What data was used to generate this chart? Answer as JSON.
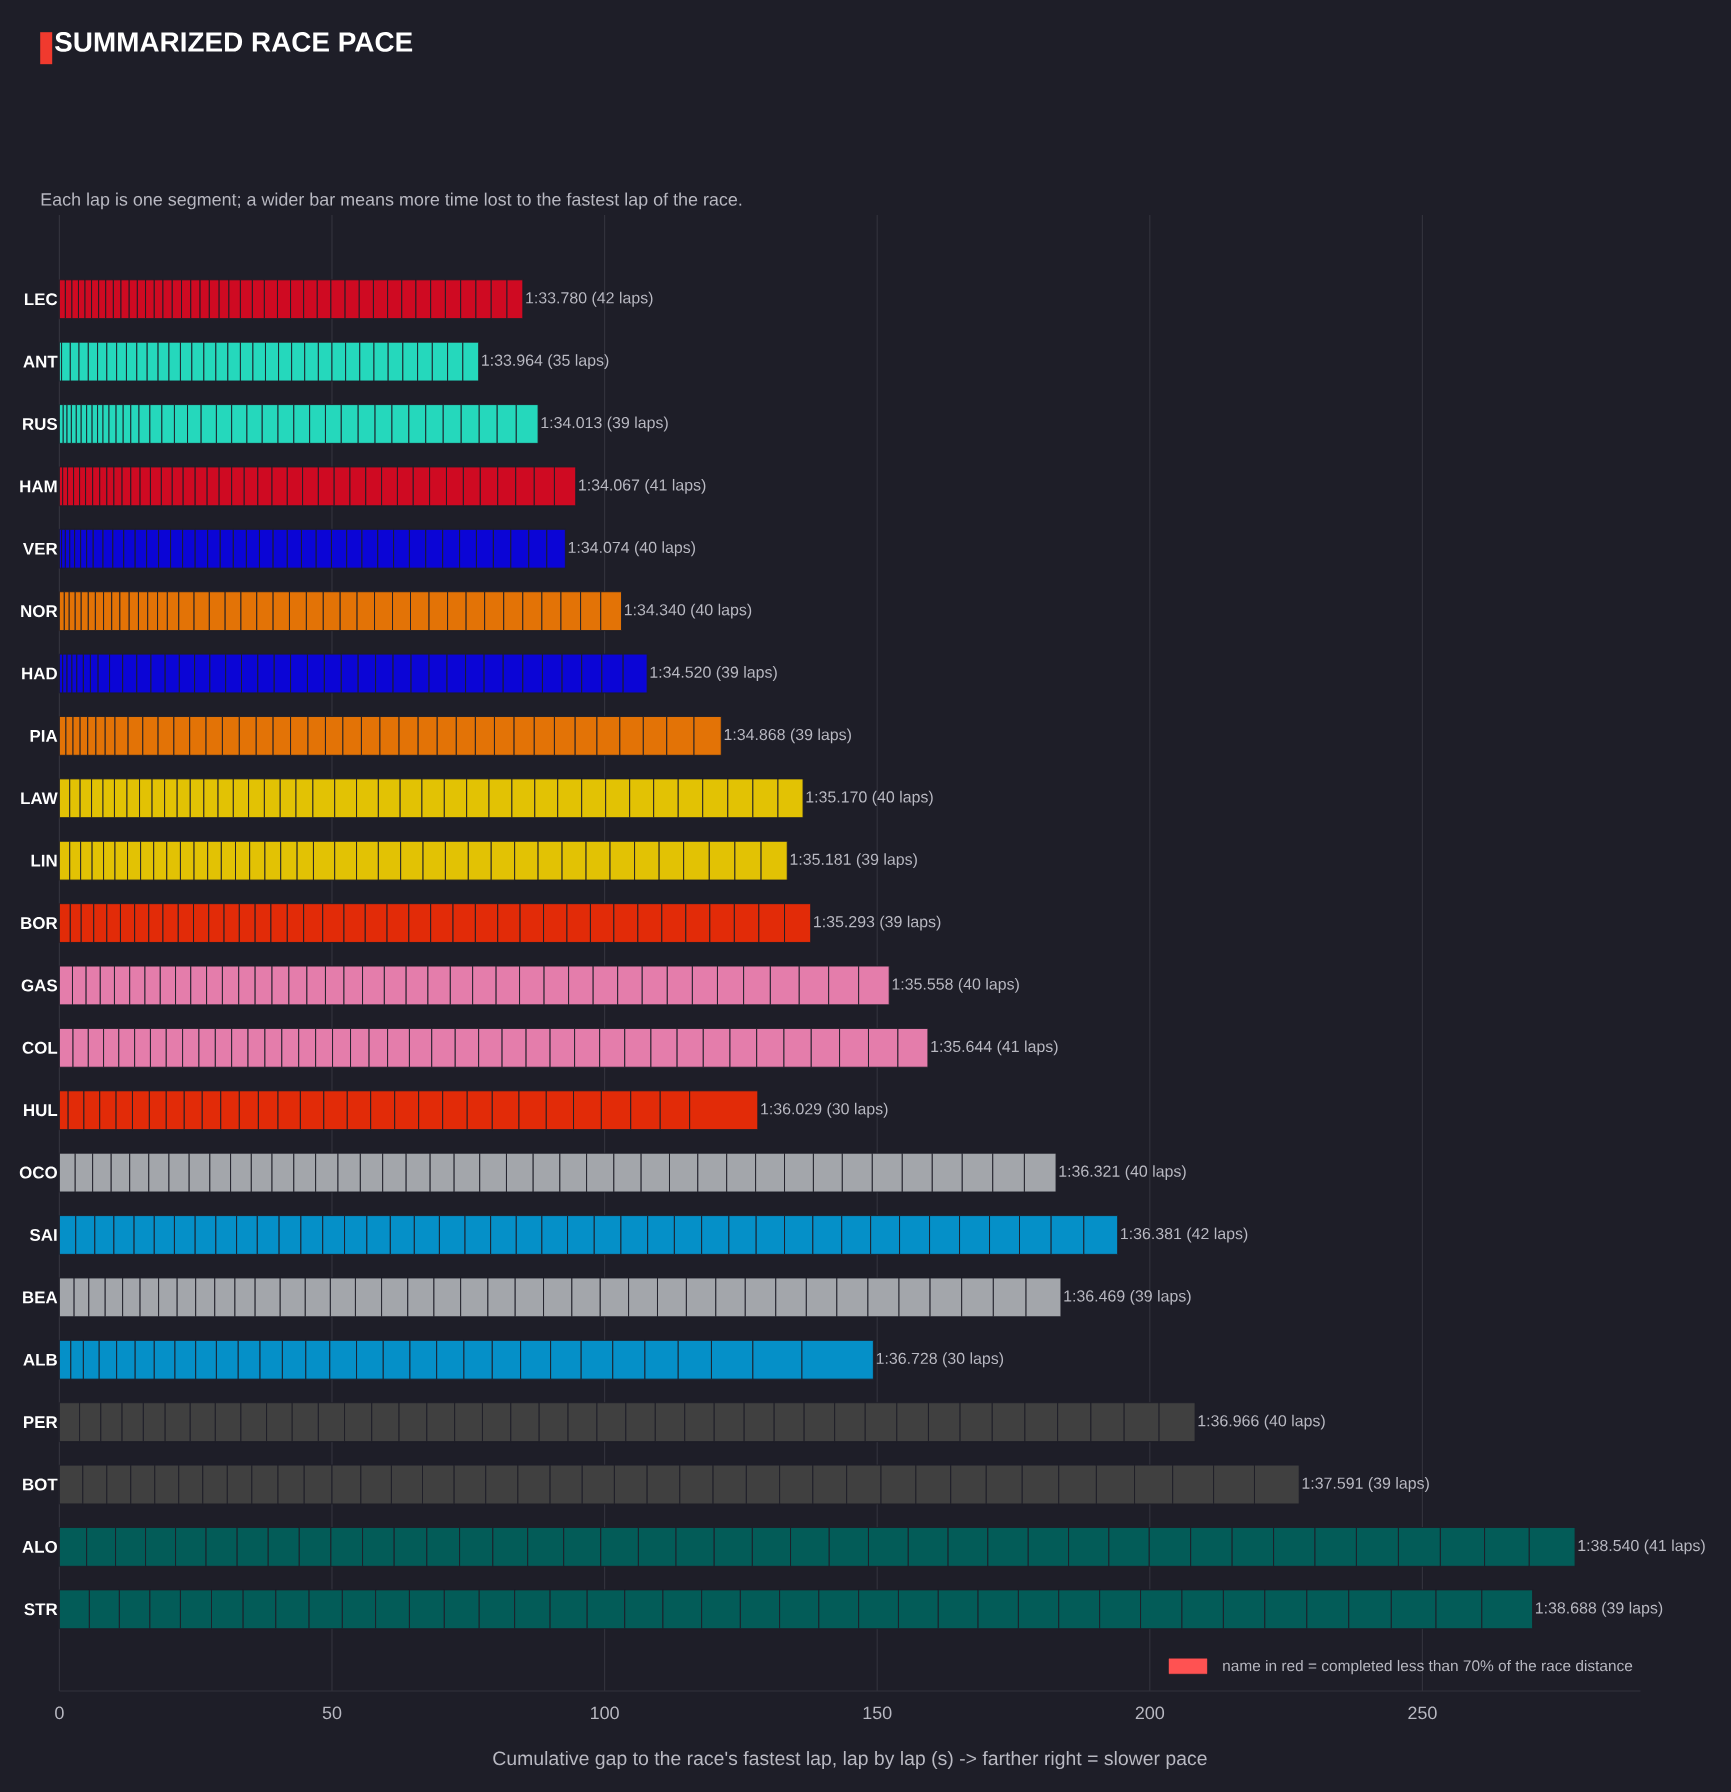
{
  "chart_data": {
    "type": "bar",
    "orientation": "horizontal",
    "stacked": true,
    "title": "SUMMARIZED RACE PACE",
    "subtitle": "Each lap is one segment; a wider bar means more time lost to the fastest lap of the race.",
    "xlabel": "Cumulative gap to the race's fastest lap, lap by lap (s) -> farther right = slower pace",
    "categories": [
      "LEC",
      "ANT",
      "RUS",
      "HAM",
      "VER",
      "NOR",
      "HAD",
      "PIA",
      "LAW",
      "LIN",
      "BOR",
      "GAS",
      "COL",
      "HUL",
      "OCO",
      "SAI",
      "BEA",
      "ALB",
      "PER",
      "BOT",
      "ALO",
      "STR"
    ],
    "series": [
      {
        "values": [
          1.1,
          0.4,
          0.7,
          0.6,
          0.4,
          0.9,
          0.6,
          1.2,
          1.9,
          1.9,
          2.0,
          2.4,
          2.5,
          1.6,
          2.9,
          3.0,
          2.7,
          2.1,
          3.7,
          4.3,
          5.0,
          5.5
        ],
        "colors": [
          "#cf0a22",
          "#25d8bc",
          "#25d8bc",
          "#cf0a22",
          "#0b05d6",
          "#e37306",
          "#0b05d6",
          "#e37306",
          "#e2c204",
          "#e2c204",
          "#e22b08",
          "#e47dab",
          "#e47dab",
          "#e22b08",
          "#a3a6ab",
          "#0590c8",
          "#a3a6ab",
          "#0590c8",
          "#404040",
          "#404040",
          "#035c58",
          "#035c58"
        ]
      },
      {
        "values": [
          1.2,
          1.6,
          0.7,
          0.9,
          0.7,
          0.9,
          0.8,
          1.3,
          1.9,
          2.0,
          2.0,
          2.5,
          2.8,
          2.9,
          3.2,
          3.5,
          2.7,
          2.3,
          3.9,
          4.4,
          5.3,
          5.5
        ],
        "colors": [
          "#cf0a22",
          "#25d8bc",
          "#25d8bc",
          "#cf0a22",
          "#0b05d6",
          "#e37306",
          "#0b05d6",
          "#e37306",
          "#e2c204",
          "#e2c204",
          "#e22b08",
          "#e47dab",
          "#e47dab",
          "#e22b08",
          "#a3a6ab",
          "#0590c8",
          "#a3a6ab",
          "#0590c8",
          "#404040",
          "#404040",
          "#035c58",
          "#035c58"
        ]
      },
      {
        "values": [
          1.2,
          1.6,
          0.8,
          1.1,
          0.8,
          1.1,
          0.9,
          1.3,
          2.1,
          2.1,
          2.3,
          2.6,
          2.8,
          2.9,
          3.4,
          3.5,
          3.0,
          2.9,
          3.9,
          4.4,
          5.5,
          5.6
        ],
        "colors": [
          "#cf0a22",
          "#25d8bc",
          "#25d8bc",
          "#cf0a22",
          "#0b05d6",
          "#e37306",
          "#0b05d6",
          "#e37306",
          "#e2c204",
          "#e2c204",
          "#e22b08",
          "#e47dab",
          "#e47dab",
          "#e22b08",
          "#a3a6ab",
          "#0590c8",
          "#a3a6ab",
          "#0590c8",
          "#404040",
          "#404040",
          "#035c58",
          "#035c58"
        ]
      },
      {
        "values": [
          1.2,
          1.7,
          0.9,
          1.1,
          0.9,
          1.1,
          0.9,
          1.4,
          2.1,
          2.1,
          2.4,
          2.6,
          2.8,
          3.0,
          3.4,
          3.7,
          3.2,
          3.2,
          3.9,
          4.4,
          5.5,
          5.6
        ],
        "colors": [
          "#cf0a22",
          "#25d8bc",
          "#25d8bc",
          "#cf0a22",
          "#0b05d6",
          "#e37306",
          "#0b05d6",
          "#e37306",
          "#e2c204",
          "#e2c204",
          "#e22b08",
          "#e47dab",
          "#e47dab",
          "#e22b08",
          "#a3a6ab",
          "#0590c8",
          "#a3a6ab",
          "#0590c8",
          "#404040",
          "#404040",
          "#035c58",
          "#035c58"
        ]
      },
      {
        "values": [
          1.2,
          1.7,
          0.9,
          1.1,
          1.1,
          1.3,
          1.2,
          1.5,
          2.1,
          2.1,
          2.5,
          2.8,
          2.9,
          3.0,
          3.5,
          3.7,
          3.2,
          3.4,
          4.0,
          4.4,
          5.6,
          5.7
        ],
        "colors": [
          "#cf0a22",
          "#25d8bc",
          "#25d8bc",
          "#cf0a22",
          "#0b05d6",
          "#e37306",
          "#0b05d6",
          "#e37306",
          "#e2c204",
          "#e2c204",
          "#e22b08",
          "#e47dab",
          "#e47dab",
          "#e22b08",
          "#a3a6ab",
          "#0590c8",
          "#a3a6ab",
          "#0590c8",
          "#404040",
          "#404040",
          "#035c58",
          "#035c58"
        ]
      },
      {
        "values": [
          1.3,
          1.7,
          1.0,
          1.3,
          1.1,
          1.3,
          1.3,
          1.7,
          2.3,
          2.3,
          2.6,
          2.8,
          2.9,
          3.1,
          3.7,
          3.7,
          3.4,
          3.5,
          4.6,
          4.4,
          5.7,
          5.8
        ],
        "colors": [
          "#cf0a22",
          "#25d8bc",
          "#25d8bc",
          "#cf0a22",
          "#0b05d6",
          "#e37306",
          "#0b05d6",
          "#e37306",
          "#e2c204",
          "#e2c204",
          "#e22b08",
          "#e47dab",
          "#e47dab",
          "#e22b08",
          "#a3a6ab",
          "#0590c8",
          "#a3a6ab",
          "#0590c8",
          "#404040",
          "#404040",
          "#035c58",
          "#035c58"
        ]
      },
      {
        "values": [
          1.3,
          1.8,
          1.0,
          1.3,
          1.2,
          1.5,
          1.4,
          1.8,
          2.3,
          2.4,
          2.6,
          2.8,
          2.9,
          3.1,
          3.7,
          3.8,
          3.4,
          3.8,
          4.6,
          4.5,
          5.7,
          6.0
        ],
        "colors": [
          "#cf0a22",
          "#25d8bc",
          "#25d8bc",
          "#cf0a22",
          "#0b05d6",
          "#e37306",
          "#0b05d6",
          "#e37306",
          "#e2c204",
          "#e2c204",
          "#e22b08",
          "#e47dab",
          "#e47dab",
          "#e22b08",
          "#a3a6ab",
          "#0590c8",
          "#a3a6ab",
          "#0590c8",
          "#404040",
          "#404040",
          "#035c58",
          "#035c58"
        ]
      },
      {
        "values": [
          1.4,
          1.8,
          1.0,
          1.3,
          1.8,
          1.5,
          2.1,
          2.4,
          2.3,
          2.4,
          2.6,
          2.8,
          3.0,
          3.3,
          3.8,
          3.8,
          3.4,
          3.8,
          4.7,
          4.5,
          5.7,
          6.1
        ],
        "colors": [
          "#cf0a22",
          "#25d8bc",
          "#25d8bc",
          "#cf0a22",
          "#0b05d6",
          "#e37306",
          "#0b05d6",
          "#e37306",
          "#e2c204",
          "#e2c204",
          "#e22b08",
          "#e47dab",
          "#e47dab",
          "#e22b08",
          "#a3a6ab",
          "#0590c8",
          "#a3a6ab",
          "#0590c8",
          "#404040",
          "#404040",
          "#035c58",
          "#035c58"
        ]
      },
      {
        "values": [
          1.4,
          1.9,
          1.0,
          1.3,
          1.8,
          1.5,
          2.4,
          2.7,
          2.3,
          2.4,
          2.8,
          2.8,
          3.0,
          3.3,
          3.8,
          3.8,
          3.5,
          3.8,
          4.7,
          4.8,
          5.8,
          6.1
        ],
        "colors": [
          "#cf0a22",
          "#25d8bc",
          "#25d8bc",
          "#cf0a22",
          "#0b05d6",
          "#e37306",
          "#0b05d6",
          "#e37306",
          "#e2c204",
          "#e2c204",
          "#e22b08",
          "#e47dab",
          "#e47dab",
          "#e22b08",
          "#a3a6ab",
          "#0590c8",
          "#a3a6ab",
          "#0590c8",
          "#404040",
          "#404040",
          "#035c58",
          "#035c58"
        ]
      },
      {
        "values": [
          1.5,
          1.9,
          1.1,
          1.5,
          2.0,
          1.7,
          2.6,
          2.8,
          2.3,
          2.5,
          2.8,
          2.9,
          3.0,
          3.4,
          3.8,
          3.8,
          3.7,
          4.0,
          4.7,
          4.8,
          5.8,
          6.1
        ],
        "colors": [
          "#cf0a22",
          "#25d8bc",
          "#25d8bc",
          "#cf0a22",
          "#0b05d6",
          "#e37306",
          "#0b05d6",
          "#e37306",
          "#e2c204",
          "#e2c204",
          "#e22b08",
          "#e47dab",
          "#e47dab",
          "#e22b08",
          "#a3a6ab",
          "#0590c8",
          "#a3a6ab",
          "#0590c8",
          "#404040",
          "#404040",
          "#035c58",
          "#035c58"
        ]
      },
      {
        "values": [
          1.5,
          2.0,
          1.3,
          1.6,
          2.1,
          1.7,
          2.6,
          2.9,
          2.4,
          2.5,
          2.8,
          2.9,
          3.0,
          3.4,
          3.8,
          4.0,
          3.7,
          4.0,
          4.8,
          5.1,
          5.8,
          6.2
        ],
        "colors": [
          "#cf0a22",
          "#25d8bc",
          "#25d8bc",
          "#cf0a22",
          "#0b05d6",
          "#e37306",
          "#0b05d6",
          "#e37306",
          "#e2c204",
          "#e2c204",
          "#e22b08",
          "#e47dab",
          "#e47dab",
          "#e22b08",
          "#a3a6ab",
          "#0590c8",
          "#a3a6ab",
          "#0590c8",
          "#404040",
          "#404040",
          "#035c58",
          "#035c58"
        ]
      },
      {
        "values": [
          1.5,
          2.0,
          1.3,
          1.7,
          2.1,
          1.7,
          2.6,
          2.9,
          2.5,
          2.5,
          2.8,
          3.0,
          3.0,
          3.5,
          4.0,
          4.0,
          4.6,
          4.1,
          4.8,
          5.3,
          6.0,
          6.4
        ],
        "colors": [
          "#cf0a22",
          "#25d8bc",
          "#25d8bc",
          "#cf0a22",
          "#0b05d6",
          "#e37306",
          "#0b05d6",
          "#e37306",
          "#e2c204",
          "#e2c204",
          "#e22b08",
          "#e47dab",
          "#e47dab",
          "#e22b08",
          "#a3a6ab",
          "#0590c8",
          "#a3a6ab",
          "#0590c8",
          "#404040",
          "#404040",
          "#035c58",
          "#035c58"
        ]
      },
      {
        "values": [
          1.6,
          2.1,
          1.4,
          1.9,
          2.2,
          1.8,
          2.6,
          3.0,
          2.6,
          2.5,
          2.8,
          3.0,
          3.1,
          3.6,
          4.0,
          4.0,
          4.6,
          4.3,
          5.0,
          5.6,
          6.0,
          6.4
        ],
        "colors": [
          "#cf0a22",
          "#25d8bc",
          "#25d8bc",
          "#cf0a22",
          "#0b05d6",
          "#e37306",
          "#0b05d6",
          "#e37306",
          "#e2c204",
          "#e2c204",
          "#e22b08",
          "#e47dab",
          "#e47dab",
          "#e22b08",
          "#a3a6ab",
          "#0590c8",
          "#a3a6ab",
          "#0590c8",
          "#404040",
          "#404040",
          "#035c58",
          "#035c58"
        ]
      },
      {
        "values": [
          1.6,
          2.1,
          1.5,
          2.0,
          2.2,
          1.8,
          2.8,
          3.0,
          2.8,
          2.6,
          2.9,
          3.1,
          3.1,
          4.1,
          4.1,
          4.0,
          4.6,
          4.4,
          5.0,
          5.7,
          6.1,
          6.5
        ],
        "colors": [
          "#cf0a22",
          "#25d8bc",
          "#25d8bc",
          "#cf0a22",
          "#0b05d6",
          "#e37306",
          "#0b05d6",
          "#e37306",
          "#e2c204",
          "#e2c204",
          "#e22b08",
          "#e47dab",
          "#e47dab",
          "#e22b08",
          "#a3a6ab",
          "#0590c8",
          "#a3a6ab",
          "#0590c8",
          "#404040",
          "#404040",
          "#035c58",
          "#035c58"
        ]
      },
      {
        "values": [
          1.7,
          2.2,
          2.0,
          2.0,
          2.2,
          2.1,
          2.8,
          3.1,
          2.8,
          2.6,
          2.9,
          3.1,
          3.1,
          4.3,
          4.1,
          4.1,
          4.6,
          4.9,
          5.1,
          5.8,
          6.4,
          6.5
        ],
        "colors": [
          "#cf0a22",
          "#25d8bc",
          "#25d8bc",
          "#cf0a22",
          "#0b05d6",
          "#e37306",
          "#0b05d6",
          "#e37306",
          "#e2c204",
          "#e2c204",
          "#e22b08",
          "#e47dab",
          "#e47dab",
          "#e22b08",
          "#a3a6ab",
          "#0590c8",
          "#a3a6ab",
          "#0590c8",
          "#404040",
          "#404040",
          "#035c58",
          "#035c58"
        ]
      },
      {
        "values": [
          1.7,
          2.2,
          2.2,
          2.0,
          2.3,
          2.8,
          2.9,
          3.1,
          2.9,
          2.8,
          3.0,
          3.3,
          3.1,
          4.3,
          4.1,
          4.3,
          4.8,
          4.9,
          5.1,
          5.8,
          6.6,
          6.8
        ],
        "colors": [
          "#cf0a22",
          "#25d8bc",
          "#25d8bc",
          "#cf0a22",
          "#0b05d6",
          "#e37306",
          "#0b05d6",
          "#e37306",
          "#e2c204",
          "#e2c204",
          "#e22b08",
          "#e47dab",
          "#e47dab",
          "#e22b08",
          "#a3a6ab",
          "#0590c8",
          "#a3a6ab",
          "#0590c8",
          "#404040",
          "#404040",
          "#035c58",
          "#035c58"
        ]
      },
      {
        "values": [
          1.7,
          2.2,
          2.3,
          2.2,
          2.3,
          2.8,
          2.9,
          3.1,
          2.9,
          2.9,
          3.0,
          3.4,
          3.1,
          4.3,
          4.3,
          4.4,
          4.8,
          4.9,
          5.1,
          5.9,
          6.8,
          6.9
        ],
        "colors": [
          "#cf0a22",
          "#25d8bc",
          "#25d8bc",
          "#cf0a22",
          "#0b05d6",
          "#e37306",
          "#0b05d6",
          "#e37306",
          "#e2c204",
          "#e2c204",
          "#e22b08",
          "#e47dab",
          "#e47dab",
          "#e22b08",
          "#a3a6ab",
          "#0590c8",
          "#a3a6ab",
          "#0590c8",
          "#404040",
          "#404040",
          "#035c58",
          "#035c58"
        ]
      },
      {
        "values": [
          1.7,
          2.3,
          2.4,
          2.2,
          2.3,
          2.9,
          3.0,
          3.2,
          2.9,
          3.0,
          3.5,
          3.4,
          3.3,
          4.4,
          4.4,
          4.6,
          4.8,
          4.9,
          5.2,
          5.9,
          6.9,
          7.0
        ],
        "colors": [
          "#cf0a22",
          "#25d8bc",
          "#25d8bc",
          "#cf0a22",
          "#0b05d6",
          "#e37306",
          "#0b05d6",
          "#e37306",
          "#e2c204",
          "#e2c204",
          "#e22b08",
          "#e47dab",
          "#e47dab",
          "#e22b08",
          "#a3a6ab",
          "#0590c8",
          "#a3a6ab",
          "#0590c8",
          "#404040",
          "#404040",
          "#035c58",
          "#035c58"
        ]
      },
      {
        "values": [
          1.7,
          2.3,
          2.5,
          2.2,
          2.4,
          2.9,
          3.0,
          3.2,
          3.1,
          3.0,
          3.9,
          3.4,
          3.4,
          4.4,
          4.4,
          4.7,
          4.9,
          5.0,
          5.2,
          5.9,
          6.9,
          7.1
        ],
        "colors": [
          "#cf0a22",
          "#25d8bc",
          "#25d8bc",
          "#cf0a22",
          "#0b05d6",
          "#e37306",
          "#0b05d6",
          "#e37306",
          "#e2c204",
          "#e2c204",
          "#e22b08",
          "#e47dab",
          "#e47dab",
          "#e22b08",
          "#a3a6ab",
          "#0590c8",
          "#a3a6ab",
          "#0590c8",
          "#404040",
          "#404040",
          "#035c58",
          "#035c58"
        ]
      },
      {
        "values": [
          1.8,
          2.3,
          2.8,
          2.3,
          2.4,
          2.9,
          3.0,
          3.2,
          4.0,
          3.9,
          3.9,
          4.0,
          3.4,
          4.4,
          4.7,
          4.7,
          5.0,
          5.2,
          5.3,
          5.9,
          7.0,
          7.1
        ],
        "colors": [
          "#cf0a22",
          "#25d8bc",
          "#25d8bc",
          "#cf0a22",
          "#0b05d6",
          "#e37306",
          "#0b05d6",
          "#e37306",
          "#e2c204",
          "#e2c204",
          "#e22b08",
          "#e47dab",
          "#e47dab",
          "#e22b08",
          "#a3a6ab",
          "#0590c8",
          "#a3a6ab",
          "#0590c8",
          "#404040",
          "#404040",
          "#035c58",
          "#035c58"
        ]
      },
      {
        "values": [
          1.8,
          2.4,
          2.8,
          2.3,
          2.4,
          3.0,
          3.1,
          3.2,
          4.0,
          4.0,
          4.0,
          4.0,
          4.0,
          4.5,
          4.9,
          4.7,
          5.0,
          5.2,
          5.3,
          6.0,
          7.0,
          7.2
        ],
        "colors": [
          "#cf0a22",
          "#25d8bc",
          "#25d8bc",
          "#cf0a22",
          "#0b05d6",
          "#e37306",
          "#0b05d6",
          "#e37306",
          "#e2c204",
          "#e2c204",
          "#e22b08",
          "#e47dab",
          "#e47dab",
          "#e22b08",
          "#a3a6ab",
          "#0590c8",
          "#a3a6ab",
          "#0590c8",
          "#404040",
          "#404040",
          "#035c58",
          "#035c58"
        ]
      },
      {
        "values": [
          2.1,
          2.4,
          2.8,
          2.5,
          2.5,
          3.0,
          3.1,
          3.4,
          4.0,
          4.0,
          4.0,
          4.0,
          4.1,
          4.6,
          4.9,
          4.7,
          5.2,
          5.5,
          5.3,
          6.0,
          7.0,
          7.2
        ],
        "colors": [
          "#cf0a22",
          "#25d8bc",
          "#25d8bc",
          "#cf0a22",
          "#0b05d6",
          "#e37306",
          "#0b05d6",
          "#e37306",
          "#e2c204",
          "#e2c204",
          "#e22b08",
          "#e47dab",
          "#e47dab",
          "#e22b08",
          "#a3a6ab",
          "#0590c8",
          "#a3a6ab",
          "#0590c8",
          "#404040",
          "#404040",
          "#035c58",
          "#035c58"
        ]
      },
      {
        "values": [
          2.2,
          2.4,
          2.8,
          2.6,
          2.6,
          3.1,
          3.1,
          3.4,
          4.0,
          4.1,
          4.0,
          4.1,
          4.3,
          4.9,
          4.9,
          4.7,
          5.2,
          5.6,
          5.4,
          6.1,
          7.1,
          7.3
        ],
        "colors": [
          "#cf0a22",
          "#25d8bc",
          "#25d8bc",
          "#cf0a22",
          "#0b05d6",
          "#e37306",
          "#0b05d6",
          "#e37306",
          "#e2c204",
          "#e2c204",
          "#e22b08",
          "#e47dab",
          "#e47dab",
          "#e22b08",
          "#a3a6ab",
          "#0590c8",
          "#a3a6ab",
          "#0590c8",
          "#404040",
          "#404040",
          "#035c58",
          "#035c58"
        ]
      },
      {
        "values": [
          2.2,
          2.5,
          2.9,
          2.8,
          2.6,
          3.1,
          3.1,
          3.5,
          4.0,
          4.1,
          4.1,
          4.1,
          4.3,
          5.0,
          4.9,
          4.9,
          5.2,
          5.8,
          5.4,
          6.1,
          7.2,
          7.3
        ],
        "colors": [
          "#cf0a22",
          "#25d8bc",
          "#25d8bc",
          "#cf0a22",
          "#0b05d6",
          "#e37306",
          "#0b05d6",
          "#e37306",
          "#e2c204",
          "#e2c204",
          "#e22b08",
          "#e47dab",
          "#e47dab",
          "#e22b08",
          "#a3a6ab",
          "#0590c8",
          "#a3a6ab",
          "#0590c8",
          "#404040",
          "#404040",
          "#035c58",
          "#035c58"
        ]
      },
      {
        "values": [
          2.4,
          2.5,
          2.9,
          2.8,
          2.7,
          3.1,
          3.2,
          3.5,
          4.1,
          4.1,
          4.1,
          4.3,
          4.3,
          5.0,
          5.0,
          4.9,
          5.2,
          5.9,
          5.4,
          6.1,
          7.3,
          7.3
        ],
        "colors": [
          "#cf0a22",
          "#25d8bc",
          "#25d8bc",
          "#cf0a22",
          "#0b05d6",
          "#e37306",
          "#0b05d6",
          "#e37306",
          "#e2c204",
          "#e2c204",
          "#e22b08",
          "#e47dab",
          "#e47dab",
          "#e22b08",
          "#a3a6ab",
          "#0590c8",
          "#a3a6ab",
          "#0590c8",
          "#404040",
          "#404040",
          "#035c58",
          "#035c58"
        ]
      },
      {
        "values": [
          2.4,
          2.5,
          2.9,
          2.9,
          2.8,
          3.1,
          3.2,
          3.5,
          4.1,
          4.2,
          4.1,
          4.3,
          4.4,
          5.1,
          5.0,
          4.9,
          5.3,
          6.1,
          5.5,
          6.1,
          7.3,
          7.3
        ],
        "colors": [
          "#cf0a22",
          "#25d8bc",
          "#25d8bc",
          "#cf0a22",
          "#0b05d6",
          "#e37306",
          "#0b05d6",
          "#e37306",
          "#e2c204",
          "#e2c204",
          "#e22b08",
          "#e47dab",
          "#e47dab",
          "#e22b08",
          "#a3a6ab",
          "#0590c8",
          "#a3a6ab",
          "#0590c8",
          "#404040",
          "#404040",
          "#035c58",
          "#035c58"
        ]
      },
      {
        "values": [
          2.4,
          2.6,
          2.9,
          2.9,
          2.8,
          3.2,
          3.3,
          3.5,
          4.1,
          4.2,
          4.1,
          4.5,
          4.4,
          5.4,
          5.2,
          4.9,
          5.3,
          6.1,
          5.5,
          6.2,
          7.3,
          7.4
        ],
        "colors": [
          "#cf0a22",
          "#25d8bc",
          "#25d8bc",
          "#cf0a22",
          "#0b05d6",
          "#e37306",
          "#0b05d6",
          "#e37306",
          "#e2c204",
          "#e2c204",
          "#e22b08",
          "#e47dab",
          "#e47dab",
          "#e22b08",
          "#a3a6ab",
          "#0590c8",
          "#a3a6ab",
          "#0590c8",
          "#404040",
          "#404040",
          "#035c58",
          "#035c58"
        ]
      },
      {
        "values": [
          2.5,
          2.6,
          2.9,
          2.9,
          2.8,
          3.3,
          3.3,
          3.5,
          4.2,
          4.3,
          4.3,
          4.5,
          4.5,
          5.4,
          5.2,
          5.0,
          5.4,
          7.6,
          5.5,
          6.3,
          7.4,
          7.4
        ],
        "colors": [
          "#cf0a22",
          "#25d8bc",
          "#25d8bc",
          "#cf0a22",
          "#0b05d6",
          "#e37306",
          "#0b05d6",
          "#e37306",
          "#e2c204",
          "#e2c204",
          "#e22b08",
          "#e47dab",
          "#e47dab",
          "#e22b08",
          "#a3a6ab",
          "#0590c8",
          "#a3a6ab",
          "#0590c8",
          "#404040",
          "#404040",
          "#035c58",
          "#035c58"
        ]
      },
      {
        "values": [
          2.5,
          2.6,
          3.1,
          2.9,
          2.9,
          3.3,
          3.3,
          3.5,
          4.2,
          4.3,
          4.3,
          4.5,
          4.6,
          5.4,
          5.3,
          5.0,
          5.4,
          9.0,
          5.6,
          6.4,
          7.4,
          7.5
        ],
        "colors": [
          "#cf0a22",
          "#25d8bc",
          "#25d8bc",
          "#cf0a22",
          "#0b05d6",
          "#e37306",
          "#0b05d6",
          "#e37306",
          "#e2c204",
          "#e2c204",
          "#e22b08",
          "#e47dab",
          "#e47dab",
          "#e22b08",
          "#a3a6ab",
          "#0590c8",
          "#a3a6ab",
          "#0590c8",
          "#404040",
          "#404040",
          "#035c58",
          "#035c58"
        ]
      },
      {
        "values": [
          2.6,
          2.7,
          3.1,
          2.9,
          2.9,
          3.4,
          3.4,
          3.6,
          4.2,
          4.4,
          4.3,
          4.5,
          4.6,
          12.5,
          5.3,
          5.0,
          5.6,
          13.1,
          5.6,
          6.4,
          7.4,
          7.5
        ],
        "colors": [
          "#cf0a22",
          "#25d8bc",
          "#25d8bc",
          "#cf0a22",
          "#0b05d6",
          "#e37306",
          "#0b05d6",
          "#e37306",
          "#e2c204",
          "#e2c204",
          "#e22b08",
          "#e47dab",
          "#e47dab",
          "#e22b08",
          "#a3a6ab",
          "#0590c8",
          "#a3a6ab",
          "#0590c8",
          "#404040",
          "#404040",
          "#035c58",
          "#035c58"
        ]
      },
      {
        "values": [
          2.6,
          2.7,
          3.1,
          2.9,
          2.9,
          3.4,
          3.4,
          3.7,
          4.4,
          4.4,
          4.3,
          4.5,
          4.8,
          null,
          5.3,
          5.2,
          5.6,
          null,
          5.8,
          6.5,
          7.4,
          7.6
        ],
        "colors": [
          "#cf0a22",
          "#25d8bc",
          "#25d8bc",
          "#cf0a22",
          "#0b05d6",
          "#e37306",
          "#0b05d6",
          "#e37306",
          "#e2c204",
          "#e2c204",
          "#e22b08",
          "#e47dab",
          "#e47dab",
          null,
          "#a3a6ab",
          "#0590c8",
          "#a3a6ab",
          null,
          "#404040",
          "#404040",
          "#035c58",
          "#035c58"
        ]
      },
      {
        "values": [
          2.6,
          2.7,
          3.1,
          2.9,
          3.0,
          3.4,
          3.5,
          3.7,
          4.4,
          4.4,
          4.4,
          4.6,
          4.8,
          null,
          5.3,
          5.2,
          5.6,
          null,
          5.8,
          6.6,
          7.6,
          7.6
        ],
        "colors": [
          "#cf0a22",
          "#25d8bc",
          "#25d8bc",
          "#cf0a22",
          "#0b05d6",
          "#e37306",
          "#0b05d6",
          "#e37306",
          "#e2c204",
          "#e2c204",
          "#e22b08",
          "#e47dab",
          "#e47dab",
          null,
          "#a3a6ab",
          "#0590c8",
          "#a3a6ab",
          null,
          "#404040",
          "#404040",
          "#035c58",
          "#035c58"
        ]
      },
      {
        "values": [
          2.6,
          2.8,
          3.1,
          3.0,
          3.1,
          3.4,
          3.6,
          3.8,
          4.4,
          4.5,
          4.4,
          4.6,
          4.8,
          null,
          5.3,
          5.3,
          5.7,
          null,
          5.8,
          6.7,
          7.6,
          7.6
        ],
        "colors": [
          "#cf0a22",
          "#25d8bc",
          "#25d8bc",
          "#cf0a22",
          "#0b05d6",
          "#e37306",
          "#0b05d6",
          "#e37306",
          "#e2c204",
          "#e2c204",
          "#e22b08",
          "#e47dab",
          "#e47dab",
          null,
          "#a3a6ab",
          "#0590c8",
          "#a3a6ab",
          null,
          "#404040",
          "#404040",
          "#035c58",
          "#035c58"
        ]
      },
      {
        "values": [
          2.6,
          2.8,
          3.2,
          3.1,
          3.1,
          3.5,
          3.6,
          4.0,
          4.4,
          4.5,
          4.4,
          4.6,
          4.9,
          null,
          5.5,
          5.3,
          5.7,
          null,
          5.9,
          6.9,
          7.6,
          7.7
        ],
        "colors": [
          "#cf0a22",
          "#25d8bc",
          "#25d8bc",
          "#cf0a22",
          "#0b05d6",
          "#e37306",
          "#0b05d6",
          "#e37306",
          "#e2c204",
          "#e2c204",
          "#e22b08",
          "#e47dab",
          "#e47dab",
          null,
          "#a3a6ab",
          "#0590c8",
          "#a3a6ab",
          null,
          "#404040",
          "#404040",
          "#035c58",
          "#035c58"
        ]
      },
      {
        "values": [
          2.6,
          2.9,
          3.3,
          3.1,
          3.1,
          3.5,
          3.6,
          4.2,
          4.5,
          4.5,
          4.4,
          4.8,
          4.9,
          null,
          5.5,
          5.3,
          5.7,
          null,
          6.0,
          7.0,
          7.6,
          7.7
        ],
        "colors": [
          "#cf0a22",
          "#25d8bc",
          "#25d8bc",
          "#cf0a22",
          "#0b05d6",
          "#e37306",
          "#0b05d6",
          "#e37306",
          "#e2c204",
          "#e2c204",
          "#e22b08",
          "#e47dab",
          "#e47dab",
          null,
          "#a3a6ab",
          "#0590c8",
          "#a3a6ab",
          null,
          "#404040",
          "#404040",
          "#035c58",
          "#035c58"
        ]
      },
      {
        "values": [
          2.7,
          null,
          3.3,
          3.1,
          3.1,
          3.5,
          3.6,
          4.3,
          4.5,
          4.7,
          4.5,
          4.9,
          5.0,
          null,
          5.5,
          5.5,
          5.8,
          null,
          6.0,
          7.0,
          7.6,
          7.8
        ],
        "colors": [
          "#cf0a22",
          null,
          "#25d8bc",
          "#cf0a22",
          "#0b05d6",
          "#e37306",
          "#0b05d6",
          "#e37306",
          "#e2c204",
          "#e2c204",
          "#e22b08",
          "#e47dab",
          "#e47dab",
          null,
          "#a3a6ab",
          "#0590c8",
          "#a3a6ab",
          null,
          "#404040",
          "#404040",
          "#035c58",
          "#035c58"
        ]
      },
      {
        "values": [
          2.7,
          null,
          3.3,
          3.2,
          3.2,
          3.5,
          3.7,
          4.3,
          4.6,
          4.7,
          4.5,
          5.3,
          5.0,
          null,
          5.5,
          5.5,
          5.8,
          null,
          6.1,
          7.5,
          7.7,
          8.2
        ],
        "colors": [
          "#cf0a22",
          null,
          "#25d8bc",
          "#cf0a22",
          "#0b05d6",
          "#e37306",
          "#0b05d6",
          "#e37306",
          "#e2c204",
          "#e2c204",
          "#e22b08",
          "#e47dab",
          "#e47dab",
          null,
          "#a3a6ab",
          "#0590c8",
          "#a3a6ab",
          null,
          "#404040",
          "#404040",
          "#035c58",
          "#035c58"
        ]
      },
      {
        "values": [
          2.8,
          null,
          3.5,
          3.3,
          3.3,
          3.6,
          3.9,
          5.0,
          4.6,
          4.8,
          4.7,
          5.4,
          5.2,
          null,
          5.6,
          5.5,
          6.0,
          null,
          6.1,
          7.5,
          7.7,
          8.4
        ],
        "colors": [
          "#cf0a22",
          null,
          "#25d8bc",
          "#cf0a22",
          "#0b05d6",
          "#e37306",
          "#0b05d6",
          "#e37306",
          "#e2c204",
          "#e2c204",
          "#e22b08",
          "#e47dab",
          "#e47dab",
          null,
          "#a3a6ab",
          "#0590c8",
          "#a3a6ab",
          null,
          "#404040",
          "#404040",
          "#035c58",
          "#035c58"
        ]
      },
      {
        "values": [
          2.8,
          null,
          4.0,
          3.4,
          3.3,
          3.7,
          4.4,
          5.0,
          4.6,
          4.8,
          4.8,
          5.5,
          5.3,
          null,
          5.8,
          5.5,
          6.4,
          null,
          6.4,
          8.2,
          8.1,
          9.3
        ],
        "colors": [
          "#cf0a22",
          null,
          "#25d8bc",
          "#cf0a22",
          "#0b05d6",
          "#e37306",
          "#0b05d6",
          "#e37306",
          "#e2c204",
          "#e2c204",
          "#e22b08",
          "#e47dab",
          "#e47dab",
          null,
          "#a3a6ab",
          "#0590c8",
          "#a3a6ab",
          null,
          "#404040",
          "#404040",
          "#035c58",
          "#035c58"
        ]
      },
      {
        "values": [
          2.8,
          null,
          null,
          3.7,
          3.4,
          3.8,
          null,
          null,
          4.6,
          null,
          null,
          5.6,
          5.4,
          null,
          5.8,
          5.8,
          null,
          null,
          6.6,
          null,
          8.2,
          null
        ],
        "colors": [
          "#cf0a22",
          null,
          null,
          "#cf0a22",
          "#0b05d6",
          "#e37306",
          null,
          null,
          "#e2c204",
          null,
          null,
          "#e47dab",
          "#e47dab",
          null,
          "#a3a6ab",
          "#0590c8",
          null,
          null,
          "#404040",
          null,
          "#035c58",
          null
        ]
      },
      {
        "values": [
          2.9,
          null,
          null,
          3.9,
          null,
          null,
          null,
          null,
          null,
          null,
          null,
          null,
          5.5,
          null,
          null,
          6.0,
          null,
          null,
          null,
          null,
          8.4,
          null
        ],
        "colors": [
          "#cf0a22",
          null,
          null,
          "#cf0a22",
          null,
          null,
          null,
          null,
          null,
          null,
          null,
          null,
          "#e47dab",
          null,
          null,
          "#0590c8",
          null,
          null,
          null,
          null,
          "#035c58",
          null
        ]
      },
      {
        "values": [
          2.9,
          null,
          null,
          null,
          null,
          null,
          null,
          null,
          null,
          null,
          null,
          null,
          null,
          null,
          null,
          6.2,
          null,
          null,
          null,
          null,
          null,
          null
        ],
        "colors": [
          "#cf0a22",
          null,
          null,
          null,
          null,
          null,
          null,
          null,
          null,
          null,
          null,
          null,
          null,
          null,
          null,
          "#0590c8",
          null,
          null,
          null,
          null,
          null,
          null
        ]
      },
      {
        "name": "name in red = completed less than 70% of the race distance",
        "color": "#ff5252",
        "values": [
          null,
          null,
          null,
          null,
          null,
          null,
          null,
          null,
          null,
          null,
          null,
          null,
          null,
          null,
          null,
          null,
          null,
          null,
          null,
          null,
          null,
          null
        ]
      }
    ],
    "value_labels": [
      "1:33.780 (42 laps)",
      "1:33.964 (35 laps)",
      "1:34.013 (39 laps)",
      "1:34.067 (41 laps)",
      "1:34.074 (40 laps)",
      "1:34.340 (40 laps)",
      "1:34.520 (39 laps)",
      "1:34.868 (39 laps)",
      "1:35.170 (40 laps)",
      "1:35.181 (39 laps)",
      "1:35.293 (39 laps)",
      "1:35.558 (40 laps)",
      "1:35.644 (41 laps)",
      "1:36.029 (30 laps)",
      "1:36.321 (40 laps)",
      "1:36.381 (42 laps)",
      "1:36.469 (39 laps)",
      "1:36.728 (30 laps)",
      "1:36.966 (40 laps)",
      "1:37.591 (39 laps)",
      "1:38.540 (41 laps)",
      "1:38.688 (39 laps)"
    ],
    "xlim": [
      0,
      290
    ],
    "xticks": [
      0,
      50,
      100,
      150,
      200,
      250
    ],
    "grid": "x",
    "legend": "bottom right"
  }
}
